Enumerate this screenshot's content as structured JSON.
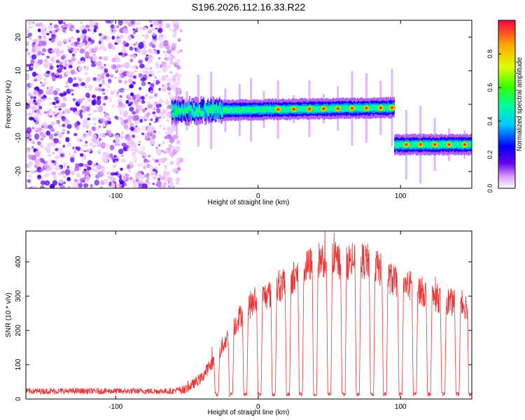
{
  "figure": {
    "title": "S196.2026.112.16.33.R22"
  },
  "chart_data": [
    {
      "type": "heatmap",
      "xlabel": "Height of straight line (km)",
      "ylabel": "Frequency (Hz)",
      "xlim": [
        -163,
        150
      ],
      "ylim": [
        -25,
        25
      ],
      "xticks": [
        -100,
        0,
        100
      ],
      "yticks": [
        -20,
        -10,
        0,
        10,
        20
      ],
      "colorbar": {
        "label": "Normalized spectral amplitude",
        "range": [
          0,
          1
        ],
        "ticks": [
          "0.0",
          "0.2",
          "0.4",
          "0.6",
          "0.8"
        ]
      },
      "noise_region_x": [
        -163,
        -60
      ],
      "band_segments": [
        {
          "x_start": -61,
          "x_end": 95,
          "freq_start": -2,
          "freq_end": -1
        },
        {
          "x_start": 95,
          "x_end": 150,
          "freq_start": -12,
          "freq_end": -12
        }
      ],
      "peak_x": [
        -57,
        -50,
        -42,
        -33,
        -23,
        -13,
        -5,
        4,
        14,
        25,
        36,
        46,
        56,
        66,
        76,
        86,
        94,
        104,
        114,
        124,
        134,
        145
      ]
    },
    {
      "type": "line",
      "xlabel": "Height of straight line (km)",
      "ylabel": "SNR (10 * v/v)",
      "xlim": [
        -163,
        150
      ],
      "ylim": [
        0,
        490
      ],
      "xticks": [
        -100,
        0,
        100
      ],
      "yticks": [
        0,
        100,
        200,
        300,
        400
      ],
      "color": "#ee3333",
      "envelope": {
        "x": [
          -163,
          -100,
          -60,
          -50,
          -40,
          -30,
          -20,
          -10,
          0,
          10,
          20,
          30,
          40,
          50,
          60,
          70,
          80,
          90,
          100,
          110,
          120,
          130,
          140,
          150
        ],
        "y": [
          20,
          20,
          20,
          30,
          60,
          120,
          190,
          260,
          290,
          310,
          340,
          370,
          405,
          410,
          400,
          405,
          400,
          360,
          330,
          330,
          300,
          290,
          275,
          270
        ]
      },
      "dropouts_x": [
        -29,
        -19,
        -9,
        1,
        11,
        21,
        30,
        40,
        50,
        60,
        70,
        80,
        89,
        100,
        110,
        120,
        130,
        140,
        149
      ]
    }
  ]
}
